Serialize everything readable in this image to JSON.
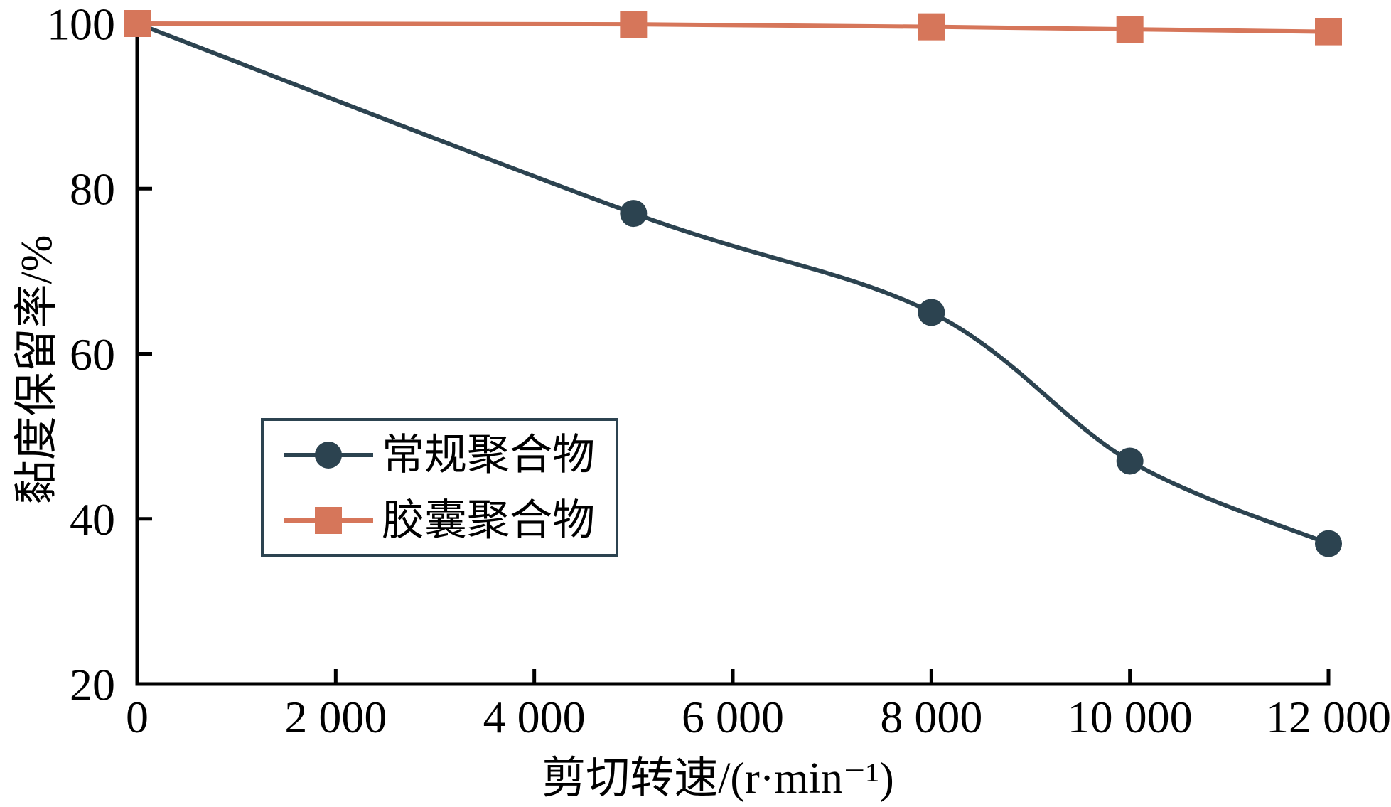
{
  "figure": {
    "background": "#ffffff",
    "axis_color": "#000000",
    "text_color": "#000000"
  },
  "chart_data": {
    "type": "line",
    "title": "",
    "xlabel": "剪切转速/(r·min⁻¹)",
    "ylabel": "黏度保留率/%",
    "xlim": [
      0,
      12000
    ],
    "ylim": [
      20,
      100
    ],
    "x_ticks": [
      0,
      2000,
      4000,
      6000,
      8000,
      10000,
      12000
    ],
    "x_tick_labels": [
      "0",
      "2 000",
      "4 000",
      "6 000",
      "8 000",
      "10 000",
      "12 000"
    ],
    "y_ticks": [
      20,
      40,
      60,
      80,
      100
    ],
    "y_tick_labels": [
      "20",
      "40",
      "60",
      "80",
      "100"
    ],
    "grid": false,
    "legend_position": "inside-left-middle",
    "x": [
      0,
      5000,
      8000,
      10000,
      12000
    ],
    "series": [
      {
        "name": "常规聚合物",
        "marker": "circle",
        "color": "#2c4350",
        "values": [
          100,
          77,
          65,
          47,
          37
        ]
      },
      {
        "name": "胶囊聚合物",
        "marker": "square",
        "color": "#d6765a",
        "values": [
          100,
          99.9,
          99.6,
          99.3,
          99
        ]
      }
    ]
  }
}
